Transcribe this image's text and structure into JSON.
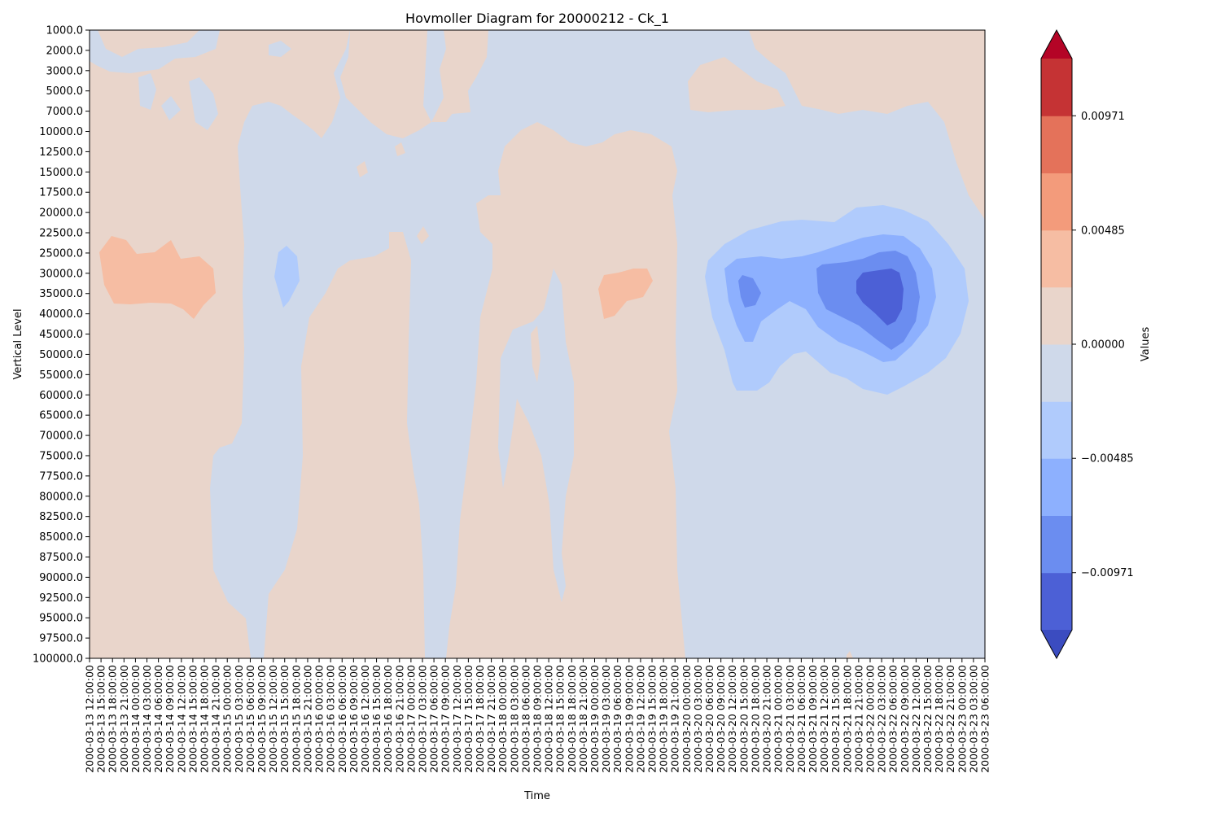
{
  "chart_data": {
    "type": "heatmap",
    "title": "Hovmoller Diagram for 20000212 - Ck_1",
    "xlabel": "Time",
    "ylabel": "Vertical Level",
    "y_ticks": [
      "1000.0",
      "2000.0",
      "3000.0",
      "5000.0",
      "7000.0",
      "10000.0",
      "12500.0",
      "15000.0",
      "17500.0",
      "20000.0",
      "22500.0",
      "25000.0",
      "30000.0",
      "35000.0",
      "40000.0",
      "45000.0",
      "50000.0",
      "55000.0",
      "60000.0",
      "65000.0",
      "70000.0",
      "75000.0",
      "77500.0",
      "80000.0",
      "82500.0",
      "85000.0",
      "87500.0",
      "90000.0",
      "92500.0",
      "95000.0",
      "97500.0",
      "100000.0"
    ],
    "x_ticks": [
      "2000-03-13 12:00:00",
      "2000-03-13 15:00:00",
      "2000-03-13 18:00:00",
      "2000-03-13 21:00:00",
      "2000-03-14 00:00:00",
      "2000-03-14 03:00:00",
      "2000-03-14 06:00:00",
      "2000-03-14 09:00:00",
      "2000-03-14 12:00:00",
      "2000-03-14 15:00:00",
      "2000-03-14 18:00:00",
      "2000-03-14 21:00:00",
      "2000-03-15 00:00:00",
      "2000-03-15 03:00:00",
      "2000-03-15 06:00:00",
      "2000-03-15 09:00:00",
      "2000-03-15 12:00:00",
      "2000-03-15 15:00:00",
      "2000-03-15 18:00:00",
      "2000-03-15 21:00:00",
      "2000-03-16 00:00:00",
      "2000-03-16 03:00:00",
      "2000-03-16 06:00:00",
      "2000-03-16 09:00:00",
      "2000-03-16 12:00:00",
      "2000-03-16 15:00:00",
      "2000-03-16 18:00:00",
      "2000-03-16 21:00:00",
      "2000-03-17 00:00:00",
      "2000-03-17 03:00:00",
      "2000-03-17 06:00:00",
      "2000-03-17 09:00:00",
      "2000-03-17 12:00:00",
      "2000-03-17 15:00:00",
      "2000-03-17 18:00:00",
      "2000-03-17 21:00:00",
      "2000-03-18 00:00:00",
      "2000-03-18 03:00:00",
      "2000-03-18 06:00:00",
      "2000-03-18 09:00:00",
      "2000-03-18 12:00:00",
      "2000-03-18 15:00:00",
      "2000-03-18 18:00:00",
      "2000-03-18 21:00:00",
      "2000-03-19 00:00:00",
      "2000-03-19 03:00:00",
      "2000-03-19 06:00:00",
      "2000-03-19 09:00:00",
      "2000-03-19 12:00:00",
      "2000-03-19 15:00:00",
      "2000-03-19 18:00:00",
      "2000-03-19 21:00:00",
      "2000-03-20 00:00:00",
      "2000-03-20 03:00:00",
      "2000-03-20 06:00:00",
      "2000-03-20 09:00:00",
      "2000-03-20 12:00:00",
      "2000-03-20 15:00:00",
      "2000-03-20 18:00:00",
      "2000-03-20 21:00:00",
      "2000-03-21 00:00:00",
      "2000-03-21 03:00:00",
      "2000-03-21 06:00:00",
      "2000-03-21 09:00:00",
      "2000-03-21 12:00:00",
      "2000-03-21 15:00:00",
      "2000-03-21 18:00:00",
      "2000-03-21 21:00:00",
      "2000-03-22 00:00:00",
      "2000-03-22 03:00:00",
      "2000-03-22 06:00:00",
      "2000-03-22 09:00:00",
      "2000-03-22 12:00:00",
      "2000-03-22 15:00:00",
      "2000-03-22 18:00:00",
      "2000-03-22 21:00:00",
      "2000-03-23 00:00:00",
      "2000-03-23 03:00:00",
      "2000-03-23 06:00:00"
    ],
    "colorbar": {
      "label": "Values",
      "tick_labels": [
        "0.00971",
        "0.00485",
        "0.00000",
        "−0.00485",
        "−0.00971"
      ],
      "tick_values": [
        0.00971,
        0.00485,
        0.0,
        -0.00485,
        -0.00971
      ],
      "levels": [
        -0.01214,
        -0.00971,
        -0.00728,
        -0.00485,
        -0.00243,
        0.0,
        0.00243,
        0.00485,
        0.00728,
        0.00971,
        0.01214
      ],
      "extend": "both",
      "colors": [
        "#3b4cc0",
        "#4c60d6",
        "#6b8df0",
        "#8db0fe",
        "#b0cbfc",
        "#cfd9ea",
        "#e9d5cb",
        "#f6bda3",
        "#f39b7b",
        "#e4725a",
        "#c53334",
        "#b40426"
      ]
    },
    "regions": [
      {
        "level": 0.00121,
        "color": "#e9d5cb",
        "from_time": "2000-03-13 12:00:00",
        "to_time": "2000-03-20 00:00:00",
        "levels": "1000.0-100000.0",
        "note": "positive band"
      },
      {
        "level": 0.00364,
        "color": "#f6bda3",
        "center_time": "2000-03-14 06:00:00",
        "center_level": "30000.0"
      },
      {
        "level": 0.00364,
        "color": "#f6bda3",
        "center_time": "2000-03-19 09:00:00",
        "center_level": "35000.0"
      },
      {
        "level": -0.00364,
        "color": "#b0cbfc",
        "center_time": "2000-03-22 00:00:00",
        "center_level": "35000.0"
      },
      {
        "level": -0.00607,
        "color": "#8db0fe",
        "center_time": "2000-03-22 00:00:00",
        "center_level": "35000.0"
      },
      {
        "level": -0.0085,
        "color": "#6b8df0",
        "center_time": "2000-03-22 06:00:00",
        "center_level": "35000.0"
      },
      {
        "level": -0.01092,
        "color": "#4c60d6",
        "center_time": "2000-03-22 06:00:00",
        "center_level": "35000.0"
      }
    ],
    "grid": false
  }
}
